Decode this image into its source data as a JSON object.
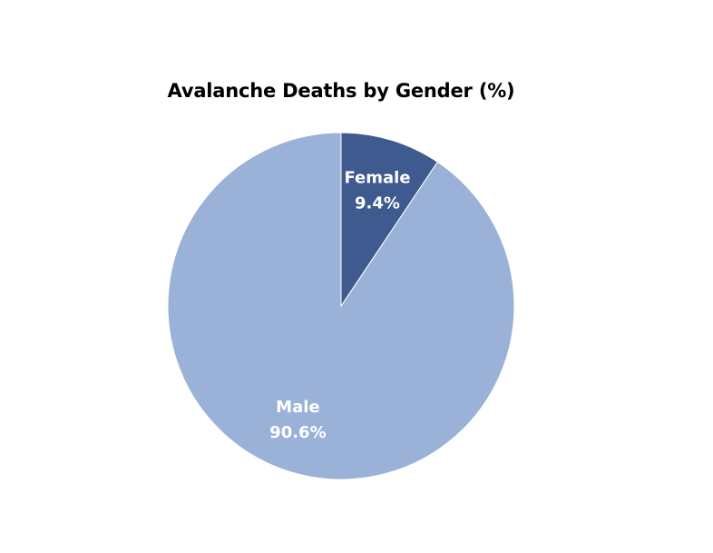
{
  "chart_data": {
    "type": "pie",
    "title": "Avalanche Deaths by Gender (%)",
    "slices": [
      {
        "label": "Female",
        "value": 9.4,
        "value_label": "9.4%",
        "color": "#3f5a8f"
      },
      {
        "label": "Male",
        "value": 90.6,
        "value_label": "90.6%",
        "color": "#9ab2d8"
      }
    ],
    "start_angle": "12 o'clock",
    "direction": "clockwise",
    "legend": "none",
    "data_labels": "inside"
  }
}
